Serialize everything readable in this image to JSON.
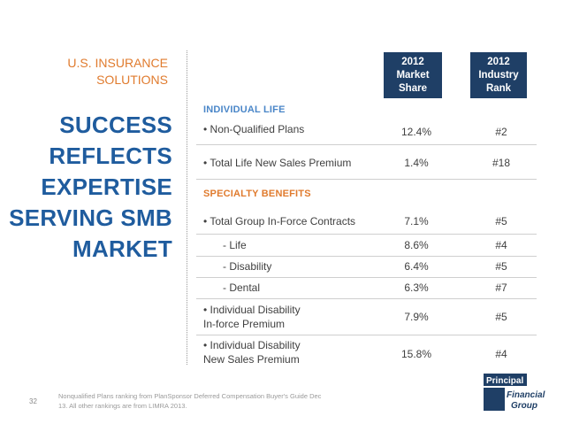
{
  "slide": {
    "subtitle": "U.S. INSURANCE\nSOLUTIONS",
    "headline": "SUCCESS\nREFLECTS\nEXPERTISE\nSERVING SMB\nMARKET",
    "page_number": "32",
    "footnote": "Nonqualified Plans ranking from PlanSponsor Deferred Compensation Buyer's Guide Dec 13.  All other rankings are from LIMRA 2013.",
    "accent_blue": "#1F5C9E",
    "accent_orange": "#E07B2E",
    "header_navy": "#1F3F66"
  },
  "table": {
    "headers": {
      "share": "2012\nMarket\nShare",
      "rank": "2012\nIndustry\nRank"
    },
    "sections": [
      {
        "label": "INDIVIDUAL LIFE",
        "color": "#4A86C8"
      },
      {
        "label": "SPECIALTY BENEFITS",
        "color": "#E07B2E"
      }
    ],
    "rows": [
      {
        "label": "• Non-Qualified Plans",
        "share": "12.4%",
        "rank": "#2"
      },
      {
        "label": "• Total Life New Sales Premium",
        "share": "1.4%",
        "rank": "#18"
      },
      {
        "label": "• Total Group In-Force Contracts",
        "share": "7.1%",
        "rank": "#5"
      },
      {
        "label": "- Life",
        "share": "8.6%",
        "rank": "#4"
      },
      {
        "label": "- Disability",
        "share": "6.4%",
        "rank": "#5"
      },
      {
        "label": "- Dental",
        "share": "6.3%",
        "rank": "#7"
      },
      {
        "label": "• Individual Disability\n   In-force Premium",
        "share": "7.9%",
        "rank": "#5"
      },
      {
        "label": "• Individual Disability\n   New Sales Premium",
        "share": "15.8%",
        "rank": "#4"
      }
    ]
  },
  "logo": {
    "top_text": "Principal",
    "bottom_text_1": "Financial",
    "bottom_text_2": "Group"
  }
}
